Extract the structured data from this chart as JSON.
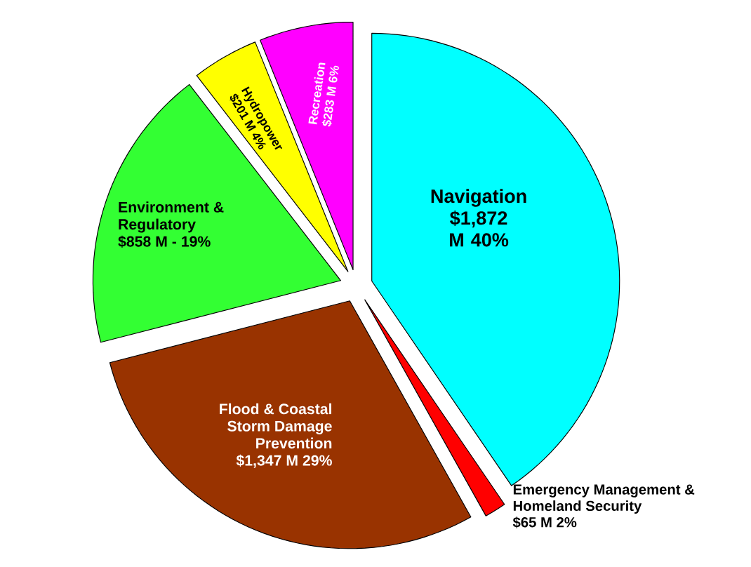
{
  "chart_data": {
    "type": "pie",
    "categories": [
      "Navigation",
      "Emergency Management & Homeland Security",
      "Flood & Coastal Storm Damage Prevention",
      "Environment & Regulatory",
      "Hydropower",
      "Recreation"
    ],
    "values": [
      1872,
      65,
      1347,
      858,
      201,
      283
    ],
    "value_labels": [
      "$1,872 M 40%",
      "$65 M 2%",
      "$1,347 M 29%",
      "$858 M - 19%",
      "$201 M 4%",
      "$283 M 6%"
    ],
    "colors": [
      "#00ffff",
      "#ff0000",
      "#993300",
      "#33ff33",
      "#ffff00",
      "#ff00ff"
    ]
  }
}
